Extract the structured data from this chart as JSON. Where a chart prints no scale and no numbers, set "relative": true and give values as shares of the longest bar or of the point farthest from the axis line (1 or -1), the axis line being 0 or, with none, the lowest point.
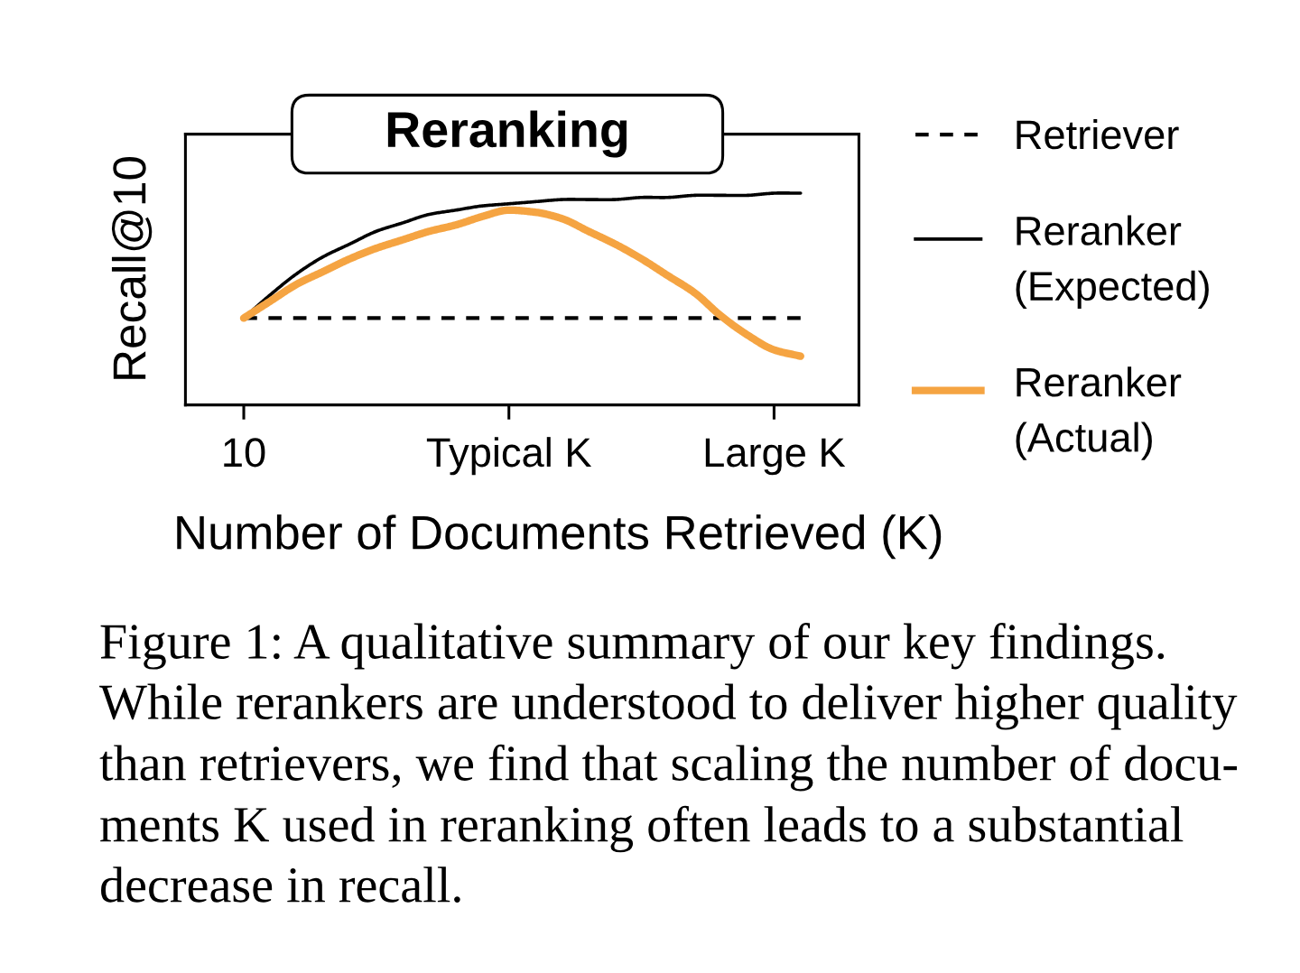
{
  "chart_data": {
    "type": "line",
    "title": "Reranking",
    "xlabel": "Number of Documents Retrieved (K)",
    "ylabel": "Recall@10",
    "relative": true,
    "categories": [
      "10",
      null,
      null,
      null,
      null,
      null,
      null,
      null,
      null,
      null,
      "Typical K",
      null,
      null,
      null,
      null,
      null,
      null,
      null,
      null,
      null,
      "Large K",
      null
    ],
    "series": [
      {
        "name": "Retriever",
        "color": "#000000",
        "line_style": "dashed",
        "values": [
          0.41,
          0.41,
          0.41,
          0.41,
          0.41,
          0.41,
          0.41,
          0.41,
          0.41,
          0.41,
          0.41,
          0.41,
          0.41,
          0.41,
          0.41,
          0.41,
          0.41,
          0.41,
          0.41,
          0.41,
          0.41,
          0.41
        ]
      },
      {
        "name": "Reranker\n(Expected)",
        "color": "#000000",
        "values": [
          0.41,
          0.52,
          0.62,
          0.7,
          0.76,
          0.82,
          0.86,
          0.9,
          0.92,
          0.94,
          0.95,
          0.96,
          0.97,
          0.97,
          0.97,
          0.98,
          0.98,
          0.99,
          0.99,
          0.99,
          1.0,
          1.0
        ]
      },
      {
        "name": "Reranker\n(Actual)",
        "color": "#f5a442",
        "values": [
          0.41,
          0.49,
          0.57,
          0.63,
          0.69,
          0.74,
          0.78,
          0.82,
          0.85,
          0.89,
          0.92,
          0.91,
          0.88,
          0.82,
          0.76,
          0.69,
          0.61,
          0.53,
          0.42,
          0.33,
          0.26,
          0.23
        ]
      }
    ],
    "line_style": "solid",
    "legend": "right",
    "annotations": [
      "Figure 1: A qualitative summary of our key findings.\nWhile rerankers are understood to deliver higher quality\nthan retrievers, we find that scaling the number of docu-\nments K used in reranking often leads to a substantial\ndecrease in recall."
    ]
  }
}
